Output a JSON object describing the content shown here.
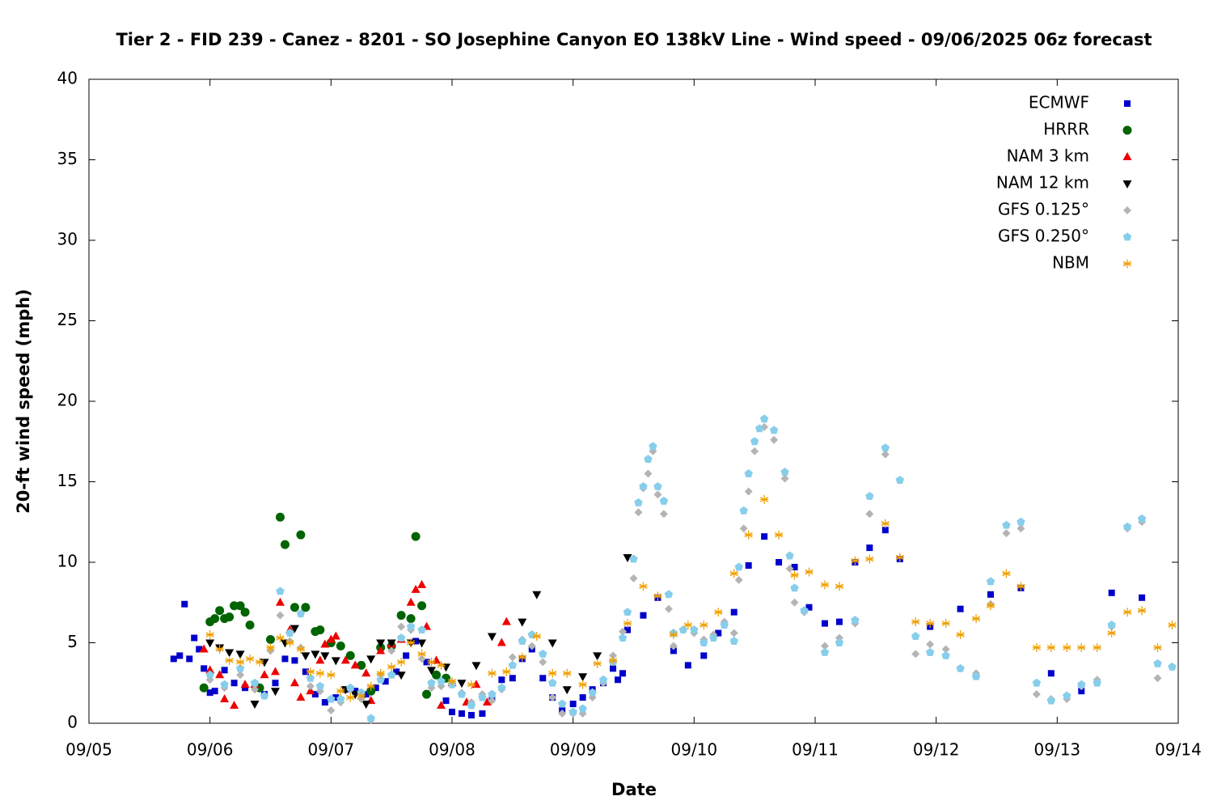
{
  "chart_data": {
    "type": "scatter",
    "title": "Tier 2 - FID 239 - Canez - 8201 - SO Josephine Canyon EO 138kV Line - Wind speed - 09/06/2025 06z forecast",
    "xlabel": "Date",
    "ylabel": "20-ft wind speed (mph)",
    "xlim": [
      5,
      14
    ],
    "ylim": [
      0,
      40
    ],
    "xticks": [
      {
        "value": 5,
        "label": "09/05"
      },
      {
        "value": 6,
        "label": "09/06"
      },
      {
        "value": 7,
        "label": "09/07"
      },
      {
        "value": 8,
        "label": "09/08"
      },
      {
        "value": 9,
        "label": "09/09"
      },
      {
        "value": 10,
        "label": "09/10"
      },
      {
        "value": 11,
        "label": "09/11"
      },
      {
        "value": 12,
        "label": "09/12"
      },
      {
        "value": 13,
        "label": "09/13"
      },
      {
        "value": 14,
        "label": "09/14"
      }
    ],
    "yticks": [
      0,
      5,
      10,
      15,
      20,
      25,
      30,
      35,
      40
    ],
    "legend": "top-right",
    "series": [
      {
        "name": "ECMWF",
        "color": "#0000cc",
        "marker": "square",
        "x": [
          5.7,
          5.75,
          5.79,
          5.83,
          5.87,
          5.91,
          5.95,
          6.0,
          6.04,
          6.12,
          6.2,
          6.29,
          6.37,
          6.45,
          6.54,
          6.62,
          6.7,
          6.79,
          6.87,
          6.95,
          7.04,
          7.12,
          7.2,
          7.29,
          7.37,
          7.45,
          7.54,
          7.62,
          7.7,
          7.79,
          7.87,
          7.95,
          8.0,
          8.08,
          8.16,
          8.25,
          8.33,
          8.41,
          8.5,
          8.58,
          8.66,
          8.75,
          8.83,
          8.91,
          9.0,
          9.08,
          9.16,
          9.25,
          9.33,
          9.37,
          9.41,
          9.45,
          9.58,
          9.7,
          9.83,
          9.95,
          10.08,
          10.2,
          10.33,
          10.45,
          10.58,
          10.7,
          10.83,
          10.95,
          11.08,
          11.2,
          11.33,
          11.45,
          11.58,
          11.7,
          11.95,
          12.2,
          12.45,
          12.7,
          12.95,
          13.2,
          13.45,
          13.7
        ],
        "values": [
          4.0,
          4.2,
          7.4,
          4.0,
          5.3,
          4.6,
          3.4,
          1.9,
          2.0,
          3.3,
          2.5,
          2.2,
          2.4,
          1.8,
          2.5,
          4.0,
          3.9,
          3.2,
          1.8,
          1.3,
          1.6,
          2.1,
          2.0,
          1.8,
          2.2,
          2.6,
          3.2,
          4.2,
          5.1,
          3.8,
          3.0,
          1.4,
          0.7,
          0.6,
          0.5,
          0.6,
          1.6,
          2.7,
          2.8,
          4.0,
          4.6,
          2.8,
          1.6,
          0.8,
          1.2,
          1.6,
          2.1,
          2.5,
          3.4,
          2.7,
          3.1,
          5.8,
          6.7,
          7.8,
          4.5,
          3.6,
          4.2,
          5.6,
          6.9,
          9.8,
          11.6,
          10.0,
          9.7,
          7.2,
          6.2,
          6.3,
          10.0,
          10.9,
          12.0,
          10.2,
          6.0,
          7.1,
          8.0,
          8.4,
          3.1,
          2.0,
          8.1,
          7.8
        ]
      },
      {
        "name": "HRRR",
        "color": "#006400",
        "marker": "circle",
        "x": [
          5.95,
          6.0,
          6.04,
          6.08,
          6.12,
          6.16,
          6.2,
          6.25,
          6.29,
          6.33,
          6.41,
          6.5,
          6.58,
          6.62,
          6.7,
          6.75,
          6.79,
          6.87,
          6.91,
          7.0,
          7.08,
          7.16,
          7.25,
          7.33,
          7.41,
          7.5,
          7.58,
          7.66,
          7.7,
          7.75,
          7.79,
          7.87,
          7.95
        ],
        "values": [
          2.2,
          6.3,
          6.5,
          7.0,
          6.5,
          6.6,
          7.3,
          7.3,
          6.9,
          6.1,
          2.2,
          5.2,
          12.8,
          11.1,
          7.2,
          11.7,
          7.2,
          5.7,
          5.8,
          5.0,
          4.8,
          4.2,
          3.6,
          2.0,
          4.7,
          4.8,
          6.7,
          6.5,
          11.6,
          7.3,
          1.8,
          3.0,
          2.8
        ]
      },
      {
        "name": "NAM 3 km",
        "color": "#ee0000",
        "marker": "triangle-up",
        "x": [
          5.95,
          6.0,
          6.08,
          6.12,
          6.2,
          6.29,
          6.37,
          6.45,
          6.54,
          6.58,
          6.66,
          6.7,
          6.75,
          6.83,
          6.91,
          6.95,
          7.0,
          7.04,
          7.12,
          7.2,
          7.29,
          7.33,
          7.41,
          7.5,
          7.58,
          7.66,
          7.7,
          7.75,
          7.79,
          7.87,
          7.91,
          8.0,
          8.12,
          8.2,
          8.29,
          8.41,
          8.45
        ],
        "values": [
          4.6,
          3.3,
          3.0,
          1.5,
          1.1,
          2.4,
          2.4,
          3.0,
          3.2,
          7.5,
          5.8,
          2.5,
          1.6,
          2.0,
          3.9,
          4.9,
          5.2,
          5.4,
          3.9,
          3.6,
          3.1,
          1.4,
          4.5,
          4.9,
          5.2,
          7.5,
          8.3,
          8.6,
          6.0,
          3.9,
          1.1,
          2.5,
          1.3,
          2.4,
          1.3,
          5.0,
          6.3
        ]
      },
      {
        "name": "NAM 12 km",
        "color": "#000000",
        "marker": "triangle-down",
        "x": [
          6.0,
          6.08,
          6.16,
          6.25,
          6.37,
          6.45,
          6.54,
          6.62,
          6.7,
          6.79,
          6.87,
          6.95,
          7.04,
          7.12,
          7.2,
          7.29,
          7.33,
          7.41,
          7.5,
          7.58,
          7.66,
          7.75,
          7.83,
          7.95,
          8.08,
          8.2,
          8.33,
          8.58,
          8.7,
          8.83,
          8.95,
          9.08,
          9.2,
          9.45
        ],
        "values": [
          5.0,
          4.7,
          4.4,
          4.3,
          1.2,
          3.8,
          2.0,
          5.0,
          5.9,
          4.2,
          4.3,
          4.2,
          3.9,
          2.1,
          1.8,
          1.2,
          4.0,
          5.0,
          5.0,
          3.0,
          5.0,
          5.0,
          3.3,
          3.5,
          2.5,
          3.6,
          5.4,
          6.3,
          8.0,
          5.0,
          2.1,
          2.9,
          4.2,
          10.3
        ]
      },
      {
        "name": "GFS 0.125°",
        "color": "#b4b4b4",
        "marker": "diamond",
        "x": [
          6.0,
          6.12,
          6.25,
          6.37,
          6.5,
          6.58,
          6.66,
          6.75,
          6.83,
          6.91,
          7.0,
          7.08,
          7.16,
          7.25,
          7.33,
          7.41,
          7.5,
          7.58,
          7.66,
          7.75,
          7.83,
          7.91,
          8.0,
          8.08,
          8.16,
          8.25,
          8.33,
          8.41,
          8.5,
          8.58,
          8.66,
          8.75,
          8.83,
          8.91,
          9.0,
          9.08,
          9.16,
          9.25,
          9.33,
          9.41,
          9.5,
          9.54,
          9.58,
          9.62,
          9.66,
          9.7,
          9.75,
          9.79,
          9.83,
          9.91,
          10.0,
          10.08,
          10.16,
          10.25,
          10.33,
          10.37,
          10.41,
          10.45,
          10.5,
          10.58,
          10.66,
          10.75,
          10.79,
          10.83,
          10.91,
          11.08,
          11.2,
          11.33,
          11.45,
          11.58,
          11.7,
          11.83,
          11.95,
          12.08,
          12.2,
          12.33,
          12.45,
          12.58,
          12.7,
          12.83,
          12.95,
          13.08,
          13.2,
          13.33,
          13.45,
          13.58,
          13.7,
          13.83,
          13.95
        ],
        "values": [
          2.7,
          2.2,
          3.0,
          2.1,
          4.5,
          6.7,
          5.1,
          4.7,
          2.3,
          2.0,
          0.8,
          1.3,
          2.1,
          1.5,
          0.2,
          3.0,
          4.5,
          6.0,
          5.8,
          4.0,
          2.2,
          2.3,
          2.5,
          1.9,
          1.3,
          1.8,
          1.4,
          2.1,
          4.1,
          5.2,
          4.8,
          3.8,
          1.6,
          0.6,
          0.6,
          0.6,
          1.6,
          2.5,
          4.2,
          5.7,
          9.0,
          13.1,
          14.6,
          15.5,
          16.9,
          14.2,
          13.0,
          7.1,
          4.8,
          5.8,
          5.6,
          5.2,
          5.5,
          6.3,
          5.6,
          8.9,
          12.1,
          14.4,
          16.9,
          18.4,
          17.6,
          15.2,
          9.6,
          7.5,
          6.9,
          4.8,
          5.3,
          6.2,
          13.0,
          16.7,
          15.1,
          4.3,
          4.9,
          4.6,
          3.4,
          3.1,
          7.4,
          11.8,
          12.1,
          1.8,
          1.5,
          1.5,
          2.3,
          2.7,
          6.0,
          12.1,
          12.5,
          2.8,
          3.5
        ]
      },
      {
        "name": "GFS 0.250°",
        "color": "#87ceeb",
        "marker": "pentagon",
        "x": [
          6.0,
          6.12,
          6.25,
          6.37,
          6.45,
          6.58,
          6.66,
          6.75,
          6.83,
          6.91,
          7.0,
          7.08,
          7.16,
          7.25,
          7.33,
          7.41,
          7.5,
          7.58,
          7.66,
          7.75,
          7.83,
          7.91,
          8.0,
          8.08,
          8.16,
          8.25,
          8.33,
          8.41,
          8.5,
          8.58,
          8.66,
          8.75,
          8.83,
          8.91,
          9.0,
          9.08,
          9.16,
          9.25,
          9.33,
          9.41,
          9.45,
          9.5,
          9.54,
          9.58,
          9.62,
          9.66,
          9.7,
          9.75,
          9.79,
          9.83,
          9.91,
          10.0,
          10.08,
          10.16,
          10.25,
          10.33,
          10.37,
          10.41,
          10.45,
          10.5,
          10.54,
          10.58,
          10.66,
          10.75,
          10.79,
          10.83,
          10.91,
          11.08,
          11.2,
          11.33,
          11.45,
          11.58,
          11.7,
          11.83,
          11.95,
          12.08,
          12.2,
          12.33,
          12.45,
          12.58,
          12.7,
          12.83,
          12.95,
          13.08,
          13.2,
          13.33,
          13.45,
          13.58,
          13.7,
          13.83,
          13.95
        ],
        "values": [
          3.0,
          2.4,
          3.4,
          2.5,
          1.7,
          8.2,
          5.6,
          6.8,
          2.8,
          2.3,
          1.5,
          1.5,
          2.2,
          1.9,
          0.3,
          2.7,
          3.0,
          5.3,
          6.0,
          5.8,
          2.5,
          2.6,
          2.4,
          1.8,
          1.1,
          1.6,
          1.8,
          2.2,
          3.6,
          5.1,
          5.5,
          4.3,
          2.5,
          1.2,
          0.7,
          0.9,
          1.9,
          2.7,
          3.8,
          5.3,
          6.9,
          10.2,
          13.7,
          14.7,
          16.4,
          17.2,
          14.7,
          13.8,
          8.0,
          5.6,
          5.8,
          5.8,
          5.0,
          5.3,
          6.1,
          5.1,
          9.7,
          13.2,
          15.5,
          17.5,
          18.3,
          18.9,
          18.2,
          15.6,
          10.4,
          8.4,
          7.0,
          4.4,
          5.0,
          6.4,
          14.1,
          17.1,
          15.1,
          5.4,
          4.4,
          4.2,
          3.4,
          2.9,
          8.8,
          12.3,
          12.5,
          2.5,
          1.4,
          1.7,
          2.4,
          2.5,
          6.1,
          12.2,
          12.7,
          3.7,
          3.5
        ]
      },
      {
        "name": "NBM",
        "color": "#f0a000",
        "marker": "asterisk",
        "x": [
          6.0,
          6.08,
          6.16,
          6.25,
          6.33,
          6.41,
          6.5,
          6.58,
          6.66,
          6.75,
          6.83,
          6.91,
          7.0,
          7.08,
          7.16,
          7.25,
          7.33,
          7.41,
          7.5,
          7.58,
          7.66,
          7.75,
          7.83,
          7.91,
          8.0,
          8.16,
          8.33,
          8.45,
          8.58,
          8.7,
          8.83,
          8.95,
          9.08,
          9.2,
          9.33,
          9.45,
          9.58,
          9.7,
          9.83,
          9.95,
          10.08,
          10.2,
          10.33,
          10.45,
          10.58,
          10.7,
          10.83,
          10.95,
          11.08,
          11.2,
          11.33,
          11.45,
          11.58,
          11.7,
          11.83,
          11.95,
          12.08,
          12.2,
          12.33,
          12.45,
          12.58,
          12.7,
          12.83,
          12.95,
          13.08,
          13.2,
          13.33,
          13.45,
          13.58,
          13.7,
          13.83,
          13.95
        ],
        "values": [
          5.5,
          4.6,
          3.9,
          3.8,
          4.0,
          3.8,
          4.7,
          5.3,
          5.0,
          4.6,
          3.2,
          3.1,
          3.0,
          2.0,
          1.6,
          1.7,
          2.3,
          3.1,
          3.5,
          3.8,
          5.0,
          4.3,
          3.8,
          3.6,
          2.6,
          2.4,
          3.1,
          3.2,
          4.1,
          5.4,
          3.1,
          3.1,
          2.4,
          3.7,
          3.9,
          6.2,
          8.5,
          7.9,
          5.5,
          6.1,
          6.1,
          6.9,
          9.3,
          11.7,
          13.9,
          11.7,
          9.2,
          9.4,
          8.6,
          8.5,
          10.1,
          10.2,
          12.4,
          10.3,
          6.3,
          6.2,
          6.2,
          5.5,
          6.5,
          7.3,
          9.3,
          8.5,
          4.7,
          4.7,
          4.7,
          4.7,
          4.7,
          5.6,
          6.9,
          7.0,
          4.7,
          6.1
        ]
      }
    ]
  }
}
